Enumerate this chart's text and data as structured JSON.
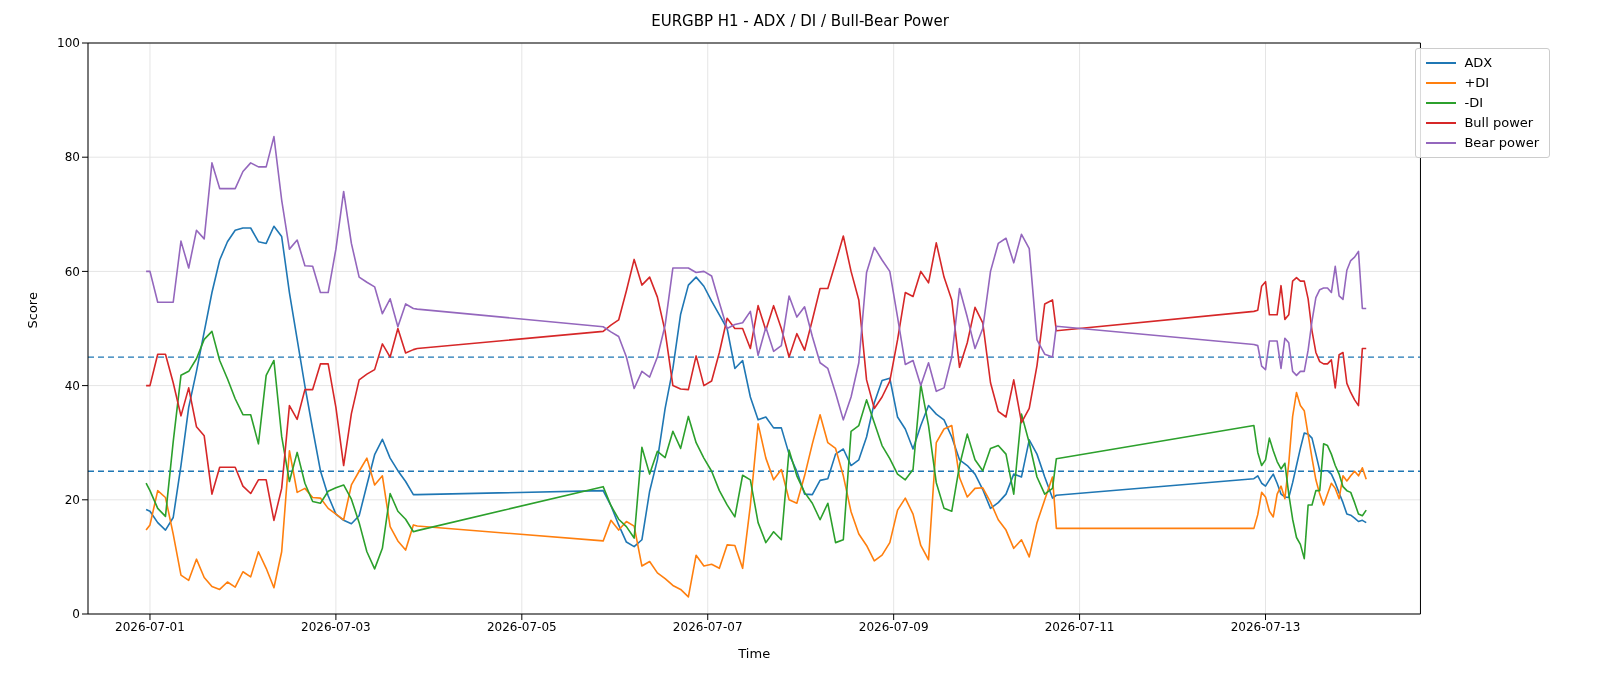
{
  "chart_data": {
    "type": "line",
    "title": "EURGBP H1 - ADX / DI / Bull-Bear Power",
    "xlabel": "Time",
    "ylabel": "Score",
    "x": [
      "2026-06-30T23:00",
      "2026-07-01T00:00",
      "2026-07-01T02:00",
      "2026-07-01T04:00",
      "2026-07-01T06:00",
      "2026-07-01T08:00",
      "2026-07-01T10:00",
      "2026-07-01T12:00",
      "2026-07-01T14:00",
      "2026-07-01T16:00",
      "2026-07-01T18:00",
      "2026-07-01T20:00",
      "2026-07-01T22:00",
      "2026-07-02T00:00",
      "2026-07-02T02:00",
      "2026-07-02T04:00",
      "2026-07-02T06:00",
      "2026-07-02T08:00",
      "2026-07-02T10:00",
      "2026-07-02T12:00",
      "2026-07-02T14:00",
      "2026-07-02T16:00",
      "2026-07-02T18:00",
      "2026-07-02T20:00",
      "2026-07-02T22:00",
      "2026-07-03T00:00",
      "2026-07-03T02:00",
      "2026-07-03T04:00",
      "2026-07-03T06:00",
      "2026-07-03T08:00",
      "2026-07-03T10:00",
      "2026-07-03T12:00",
      "2026-07-03T14:00",
      "2026-07-03T16:00",
      "2026-07-03T18:00",
      "2026-07-03T20:00",
      "2026-07-03T21:00",
      "2026-07-05T21:00",
      "2026-07-05T23:00",
      "2026-07-06T01:00",
      "2026-07-06T03:00",
      "2026-07-06T05:00",
      "2026-07-06T07:00",
      "2026-07-06T09:00",
      "2026-07-06T11:00",
      "2026-07-06T13:00",
      "2026-07-06T15:00",
      "2026-07-06T17:00",
      "2026-07-06T19:00",
      "2026-07-06T21:00",
      "2026-07-06T23:00",
      "2026-07-07T01:00",
      "2026-07-07T03:00",
      "2026-07-07T05:00",
      "2026-07-07T07:00",
      "2026-07-07T09:00",
      "2026-07-07T11:00",
      "2026-07-07T13:00",
      "2026-07-07T15:00",
      "2026-07-07T17:00",
      "2026-07-07T19:00",
      "2026-07-07T21:00",
      "2026-07-07T23:00",
      "2026-07-08T01:00",
      "2026-07-08T03:00",
      "2026-07-08T05:00",
      "2026-07-08T07:00",
      "2026-07-08T09:00",
      "2026-07-08T11:00",
      "2026-07-08T13:00",
      "2026-07-08T15:00",
      "2026-07-08T17:00",
      "2026-07-08T19:00",
      "2026-07-08T21:00",
      "2026-07-08T23:00",
      "2026-07-09T01:00",
      "2026-07-09T03:00",
      "2026-07-09T05:00",
      "2026-07-09T07:00",
      "2026-07-09T09:00",
      "2026-07-09T11:00",
      "2026-07-09T13:00",
      "2026-07-09T15:00",
      "2026-07-09T17:00",
      "2026-07-09T19:00",
      "2026-07-09T21:00",
      "2026-07-09T23:00",
      "2026-07-10T01:00",
      "2026-07-10T03:00",
      "2026-07-10T05:00",
      "2026-07-10T07:00",
      "2026-07-10T09:00",
      "2026-07-10T11:00",
      "2026-07-10T13:00",
      "2026-07-10T15:00",
      "2026-07-10T17:00",
      "2026-07-10T18:00",
      "2026-07-12T21:00",
      "2026-07-12T22:00",
      "2026-07-12T23:00",
      "2026-07-13T00:00",
      "2026-07-13T01:00",
      "2026-07-13T02:00",
      "2026-07-13T03:00",
      "2026-07-13T04:00",
      "2026-07-13T05:00",
      "2026-07-13T06:00",
      "2026-07-13T07:00",
      "2026-07-13T08:00",
      "2026-07-13T09:00",
      "2026-07-13T10:00",
      "2026-07-13T11:00",
      "2026-07-13T12:00",
      "2026-07-13T13:00",
      "2026-07-13T14:00",
      "2026-07-13T15:00",
      "2026-07-13T16:00",
      "2026-07-13T17:00",
      "2026-07-13T18:00",
      "2026-07-13T19:00",
      "2026-07-13T20:00",
      "2026-07-13T21:00",
      "2026-07-13T22:00",
      "2026-07-13T23:00",
      "2026-07-14T00:00",
      "2026-07-14T01:00",
      "2026-07-14T02:00"
    ],
    "series": [
      {
        "name": "ADX",
        "color": "#1f77b4",
        "values": [
          18.3,
          18,
          16,
          14.7,
          16.9,
          26,
          36.2,
          42.5,
          49.4,
          56.3,
          62,
          65.2,
          67.2,
          67.6,
          67.6,
          65.2,
          64.9,
          67.9,
          66.1,
          56.3,
          48.1,
          39.9,
          32.4,
          25.1,
          20.7,
          17.5,
          16.4,
          15.8,
          17.2,
          22.6,
          27.9,
          30.6,
          27.3,
          25.1,
          23.2,
          20.9,
          20.9,
          21.6,
          19,
          15.6,
          12.6,
          11.8,
          13,
          21.5,
          27,
          36,
          43,
          52.5,
          57.6,
          59,
          57.4,
          54.8,
          52.4,
          50,
          43,
          44.4,
          38,
          34,
          34.5,
          32.6,
          32.6,
          28,
          25,
          21,
          20.9,
          23.4,
          23.7,
          28,
          28.9,
          26,
          27,
          31,
          37,
          40.9,
          41.3,
          34.5,
          32.4,
          28.9,
          33,
          36.5,
          35,
          34,
          31,
          27,
          26,
          24.5,
          21.8,
          18.5,
          19.5,
          21,
          24.5,
          24,
          30.5,
          28,
          24,
          20.3,
          20.8,
          23.7,
          24.2,
          22.9,
          22.4,
          23.5,
          24.5,
          22.9,
          21,
          20.5,
          20.4,
          23,
          26,
          29,
          31.7,
          31.5,
          30.8,
          28,
          25.1,
          25.1,
          25.1,
          24.5,
          23,
          21.2,
          19.5,
          17.5,
          17.3,
          16.8,
          16.2,
          16.4,
          16
        ]
      },
      {
        "name": "+DI",
        "color": "#ff7f0e",
        "values": [
          14.7,
          15.6,
          21.6,
          20.4,
          14,
          6.8,
          5.9,
          9.6,
          6.4,
          4.8,
          4.3,
          5.6,
          4.7,
          7.4,
          6.5,
          10.9,
          8,
          4.6,
          10.9,
          28.6,
          21.3,
          22,
          20.4,
          20.3,
          18.5,
          17.5,
          16.5,
          22.6,
          25,
          27.3,
          22.6,
          24.2,
          15.3,
          12.8,
          11.2,
          15.6,
          15.4,
          12.8,
          16.4,
          14.7,
          16.2,
          15.4,
          8.4,
          9.2,
          7.2,
          6.2,
          5,
          4.3,
          3,
          10.3,
          8.4,
          8.7,
          8,
          12.1,
          12,
          8,
          19,
          33.3,
          27.3,
          23.5,
          25.3,
          20,
          19.4,
          24.2,
          29.8,
          34.9,
          30,
          29,
          24.2,
          17.9,
          14,
          12,
          9.3,
          10.3,
          12.5,
          18.2,
          20.3,
          17.5,
          12,
          9.5,
          30,
          32.4,
          33,
          23.9,
          20.5,
          22,
          22.1,
          19.6,
          16.5,
          14.7,
          11.5,
          13,
          10,
          16,
          20,
          24,
          15,
          15,
          17.4,
          21.3,
          20.5,
          18,
          17,
          21,
          22.4,
          20.2,
          26.4,
          34.6,
          38.8,
          36.5,
          35.6,
          31.4,
          27.3,
          23.5,
          21,
          19.1,
          21,
          22.9,
          22,
          20.2,
          24.2,
          23.3,
          24.2,
          25,
          24.2,
          25.6,
          23.6
        ]
      },
      {
        "name": "-DI",
        "color": "#2ca02c",
        "values": [
          22.9,
          21.6,
          18.5,
          17.1,
          30.2,
          41.8,
          42.5,
          44.7,
          48.1,
          49.5,
          44.4,
          41.2,
          37.7,
          34.9,
          34.9,
          29.8,
          41.8,
          44.4,
          31.1,
          23.2,
          28.3,
          22.9,
          19.7,
          19.4,
          21.5,
          22.1,
          22.6,
          20.1,
          16,
          10.9,
          7.9,
          11.5,
          21.1,
          18,
          16.6,
          14.4,
          14.6,
          22.3,
          19,
          16.6,
          15.3,
          13.3,
          29.2,
          24.5,
          28.5,
          27.4,
          32,
          29,
          34.6,
          30,
          27.3,
          25,
          21.6,
          19.1,
          17,
          24.3,
          23.5,
          16,
          12.5,
          14.4,
          13,
          28.7,
          24.2,
          21.3,
          19.4,
          16.5,
          19.4,
          12.5,
          13,
          32,
          33,
          37.5,
          33.5,
          29.5,
          27.2,
          24.5,
          23.5,
          25.3,
          40.2,
          33,
          23,
          18.5,
          18,
          26,
          31.5,
          27,
          25.1,
          29,
          29.5,
          28,
          21,
          35,
          30,
          24,
          21,
          22,
          27.2,
          33,
          28.3,
          26,
          27,
          30.8,
          28.6,
          26.7,
          25.4,
          26.4,
          21,
          16.6,
          13.4,
          12.2,
          9.7,
          19.1,
          19.1,
          21.6,
          21.6,
          29.8,
          29.5,
          28,
          26,
          24.5,
          22.3,
          21.6,
          21.3,
          19.5,
          17.5,
          17.2,
          18.2
        ]
      },
      {
        "name": "Bull power",
        "color": "#d62728",
        "values": [
          40,
          40,
          45.5,
          45.5,
          40.5,
          34.7,
          39.6,
          32.8,
          31.2,
          21,
          25.7,
          25.7,
          25.7,
          22.4,
          21.1,
          23.5,
          23.5,
          16.4,
          22,
          36.5,
          34.1,
          39.3,
          39.3,
          43.8,
          43.8,
          36.2,
          26,
          35.1,
          41,
          42,
          42.8,
          47.3,
          45,
          50,
          45.7,
          46.3,
          46.5,
          49.5,
          50.6,
          51.5,
          56.6,
          62.1,
          57.6,
          59,
          55.5,
          49.5,
          40,
          39.4,
          39.3,
          45.2,
          40,
          40.8,
          45.8,
          51.8,
          50,
          50,
          46.5,
          54,
          49.7,
          54,
          50,
          45,
          49.1,
          46.2,
          51.5,
          57,
          57,
          61.5,
          66.2,
          60,
          55,
          41,
          36,
          38,
          40.8,
          48,
          56.3,
          55.6,
          60,
          58,
          65,
          59,
          55,
          43.2,
          47.5,
          53.7,
          51,
          40.5,
          35.5,
          34.5,
          41,
          33.5,
          36,
          43.5,
          54.3,
          55,
          49.6,
          53,
          53.2,
          57.4,
          58.2,
          52.4,
          52.4,
          52.4,
          57.5,
          51.6,
          52.4,
          58.3,
          58.9,
          58.3,
          58.3,
          55.2,
          49.6,
          45.8,
          44.2,
          43.8,
          43.8,
          44.5,
          39.6,
          45.4,
          45.8,
          40.4,
          38.8,
          37.5,
          36.5,
          46.5,
          46.5
        ]
      },
      {
        "name": "Bear power",
        "color": "#9467bd",
        "values": [
          60,
          60,
          54.6,
          54.6,
          54.6,
          65.3,
          60.6,
          67.2,
          65.7,
          79,
          74.5,
          74.5,
          74.5,
          77.5,
          79,
          78.3,
          78.3,
          83.6,
          72.5,
          63.9,
          65.5,
          61,
          60.9,
          56.3,
          56.3,
          63.9,
          74,
          64.9,
          59,
          58.1,
          57.3,
          52.6,
          55.2,
          50.3,
          54.3,
          53.5,
          53.4,
          50.3,
          49.4,
          48.6,
          45,
          39.5,
          42.5,
          41.5,
          45,
          50.6,
          60.6,
          60.6,
          60.6,
          59.8,
          60,
          59.2,
          54.5,
          50,
          50.7,
          51,
          53,
          45.3,
          50.2,
          46,
          47,
          55.7,
          52,
          53.8,
          48.6,
          44,
          43,
          38.7,
          34,
          38,
          44,
          59.8,
          64.2,
          62,
          60,
          52,
          43.7,
          44.4,
          40,
          44,
          39,
          39.6,
          45,
          57,
          52,
          46.5,
          50,
          60,
          64.9,
          65.8,
          61.5,
          66.5,
          64,
          48,
          45.5,
          45,
          50.4,
          47.2,
          47,
          43.4,
          42.8,
          47.8,
          47.8,
          47.8,
          43,
          48.3,
          47.5,
          42.5,
          41.8,
          42.5,
          42.5,
          46.2,
          51.3,
          55.4,
          56.8,
          57.1,
          57.1,
          56.3,
          60.9,
          55.7,
          55.1,
          60.2,
          61.9,
          62.5,
          63.5,
          53.5,
          53.5
        ]
      }
    ],
    "xlim": [
      "2026-06-30T08:00",
      "2026-07-14T16:00"
    ],
    "xticks": [
      "2026-07-01",
      "2026-07-03",
      "2026-07-05",
      "2026-07-07",
      "2026-07-09",
      "2026-07-11",
      "2026-07-13"
    ],
    "ylim": [
      0,
      100
    ],
    "yticks": [
      0,
      20,
      40,
      60,
      80,
      100
    ],
    "ref_lines": [
      {
        "axis": "y",
        "value": 45,
        "color": "#1f77b4",
        "line_style": "dashed"
      },
      {
        "axis": "y",
        "value": 25,
        "color": "#1f77b4",
        "line_style": "dashed"
      }
    ],
    "grid": true,
    "legend": "top right"
  }
}
